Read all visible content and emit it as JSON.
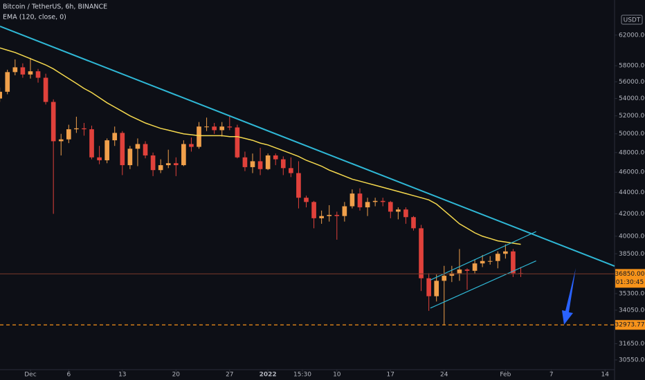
{
  "chart_data": {
    "type": "candlestick",
    "title": "Bitcoin / TetherUS, 6h, BINANCE",
    "indicator_label": "EMA (120, close, 0)",
    "currency": "USDT",
    "log_scale": true,
    "grid": false,
    "up_color": "#f0a04b",
    "down_color": "#e0413b",
    "xlim": [
      -3.97,
      76.24
    ],
    "ylim": [
      29910,
      66930
    ],
    "xticks": [
      {
        "value": 0,
        "label": "Dec"
      },
      {
        "value": 5,
        "label": "6"
      },
      {
        "value": 12,
        "label": "13"
      },
      {
        "value": 19,
        "label": "20"
      },
      {
        "value": 26,
        "label": "27"
      },
      {
        "value": 31,
        "label": "2022"
      },
      {
        "value": 35.5,
        "label": "15:30"
      },
      {
        "value": 40,
        "label": "10"
      },
      {
        "value": 47,
        "label": "17"
      },
      {
        "value": 54,
        "label": "24"
      },
      {
        "value": 62,
        "label": "Feb"
      },
      {
        "value": 68,
        "label": "7"
      },
      {
        "value": 75,
        "label": "14"
      }
    ],
    "yticks": [
      {
        "value": 62000,
        "label": "62000.00"
      },
      {
        "value": 58000,
        "label": "58000.00"
      },
      {
        "value": 56000,
        "label": "56000.00"
      },
      {
        "value": 54000,
        "label": "54000.00"
      },
      {
        "value": 52000,
        "label": "52000.00"
      },
      {
        "value": 50000,
        "label": "50000.00"
      },
      {
        "value": 48000,
        "label": "48000.00"
      },
      {
        "value": 46000,
        "label": "46000.00"
      },
      {
        "value": 44000,
        "label": "44000.00"
      },
      {
        "value": 42000,
        "label": "42000.00"
      },
      {
        "value": 40000,
        "label": "40000.00"
      },
      {
        "value": 38500,
        "label": "38500.00"
      },
      {
        "value": 35300,
        "label": "35300.00"
      },
      {
        "value": 34050,
        "label": "34050.00"
      },
      {
        "value": 31650,
        "label": "31650.00"
      },
      {
        "value": 30550,
        "label": "30550.00"
      }
    ],
    "x": [
      -4,
      -3,
      -2,
      -1,
      0,
      1,
      2,
      3,
      4,
      5,
      6,
      7,
      8,
      9,
      10,
      11,
      12,
      13,
      14,
      15,
      16,
      17,
      18,
      19,
      20,
      21,
      22,
      23,
      24,
      25,
      26,
      27,
      28,
      29,
      30,
      31,
      32,
      33,
      34,
      35,
      36,
      37,
      38,
      39,
      40,
      41,
      42,
      43,
      44,
      45,
      46,
      47,
      48,
      49,
      50,
      51,
      52,
      53,
      54,
      55,
      56,
      57,
      58,
      59,
      60,
      61,
      62,
      63,
      64
    ],
    "open": [
      54000,
      54800,
      57200,
      57800,
      56900,
      57300,
      56500,
      53600,
      49200,
      49400,
      50500,
      50600,
      50500,
      47500,
      47200,
      49300,
      50100,
      46700,
      48400,
      48900,
      47700,
      46200,
      46700,
      46900,
      46700,
      48900,
      48600,
      50800,
      50800,
      50400,
      50800,
      50700,
      47500,
      46500,
      47100,
      46300,
      47700,
      47300,
      46400,
      45900,
      43500,
      43100,
      41600,
      41800,
      41900,
      41800,
      42700,
      43900,
      42600,
      43100,
      43200,
      43100,
      42200,
      42400,
      41700,
      40700,
      36500,
      35100,
      36300,
      36700,
      36900,
      37200,
      37100,
      37700,
      37900,
      37900,
      38500,
      38700,
      36900
    ],
    "high": [
      55300,
      57500,
      58800,
      58300,
      59000,
      57600,
      57000,
      53900,
      50000,
      51000,
      51900,
      51200,
      50900,
      48700,
      49500,
      50800,
      50300,
      48700,
      49500,
      49200,
      48000,
      47300,
      48300,
      47500,
      49300,
      49600,
      51300,
      51800,
      51200,
      51300,
      52000,
      51000,
      48100,
      47900,
      48500,
      47900,
      47900,
      47600,
      47500,
      47100,
      43700,
      43200,
      42300,
      42800,
      42200,
      43100,
      44300,
      44400,
      43500,
      43500,
      43500,
      43200,
      42600,
      42600,
      41800,
      41000,
      36900,
      36800,
      37500,
      37500,
      38900,
      37300,
      38000,
      38400,
      38300,
      38700,
      39300,
      38900,
      37400
    ],
    "low": [
      53600,
      54500,
      56800,
      56500,
      56400,
      55900,
      53300,
      42000,
      47700,
      49000,
      50100,
      49800,
      47300,
      46800,
      46900,
      48700,
      45700,
      46300,
      46600,
      47400,
      45600,
      45900,
      46400,
      45600,
      46600,
      48100,
      48400,
      50300,
      50000,
      49700,
      50400,
      47400,
      46100,
      45900,
      45700,
      46200,
      46700,
      45700,
      45500,
      42500,
      42600,
      40700,
      41100,
      41300,
      39700,
      41300,
      42500,
      42300,
      41800,
      42700,
      42700,
      41600,
      41500,
      41100,
      40500,
      35500,
      34000,
      34700,
      32950,
      36200,
      36300,
      35600,
      36900,
      37400,
      37600,
      37300,
      38100,
      36600,
      36600
    ],
    "close": [
      54800,
      57200,
      57800,
      56900,
      57300,
      56500,
      53600,
      49200,
      49400,
      50500,
      50600,
      50500,
      47500,
      47200,
      49300,
      50100,
      46700,
      48400,
      48900,
      47700,
      46200,
      46700,
      46900,
      46700,
      48900,
      48600,
      50800,
      50800,
      50400,
      50800,
      50700,
      47500,
      46500,
      47100,
      46300,
      47700,
      47300,
      46400,
      45900,
      43500,
      43100,
      41600,
      41800,
      41900,
      41800,
      42700,
      43900,
      42600,
      43100,
      43200,
      43100,
      42200,
      42400,
      41700,
      40700,
      36500,
      35100,
      36300,
      36700,
      36900,
      37200,
      37100,
      37700,
      37900,
      37900,
      38500,
      38700,
      36900,
      36850
    ],
    "ema": {
      "color": "#f5d94e",
      "values": [
        60300,
        60000,
        59700,
        59300,
        58900,
        58500,
        58100,
        57600,
        57000,
        56400,
        55800,
        55200,
        54700,
        54100,
        53500,
        53000,
        52500,
        52000,
        51600,
        51200,
        50900,
        50600,
        50400,
        50200,
        50000,
        49900,
        49800,
        49800,
        49800,
        49800,
        49700,
        49700,
        49500,
        49300,
        49000,
        48800,
        48500,
        48200,
        47900,
        47600,
        47200,
        46900,
        46600,
        46200,
        45900,
        45600,
        45300,
        45100,
        44900,
        44700,
        44500,
        44300,
        44100,
        43900,
        43700,
        43500,
        43300,
        42900,
        42300,
        41700,
        41100,
        40700,
        40300,
        40000,
        39800,
        39600,
        39500,
        39400,
        39300
      ]
    },
    "trendlines": [
      {
        "color": "#2fb8d6",
        "points": [
          [
            -3.97,
            63200
          ],
          [
            76.24,
            37480
          ]
        ]
      },
      {
        "color": "#2fb8d6",
        "points": [
          [
            52.2,
            36360
          ],
          [
            66.0,
            40410
          ]
        ]
      },
      {
        "color": "#2fb8d6",
        "points": [
          [
            52.2,
            34200
          ],
          [
            66.0,
            37910
          ]
        ]
      }
    ],
    "support": {
      "value": 32973.77,
      "label": "32973.77",
      "color": "#f7931a"
    },
    "last_price": {
      "value": 36850,
      "label": "36850.00",
      "countdown": "01:30:45",
      "color": "#f7931a"
    }
  }
}
